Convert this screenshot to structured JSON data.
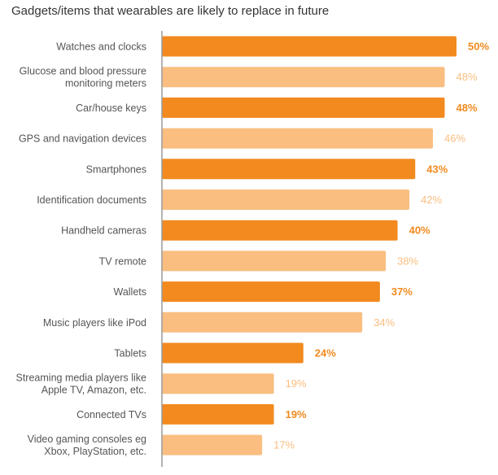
{
  "colors": {
    "dark": "#f28a1f",
    "light": "#f9be80",
    "axis": "#9a9a9a",
    "text": "#555555"
  },
  "chart_data": {
    "type": "bar",
    "orientation": "horizontal",
    "title": "Gadgets/items that wearables are likely to replace in future",
    "xlim": [
      0,
      50
    ],
    "grid": false,
    "legend": "none",
    "categories": [
      [
        "Watches and clocks"
      ],
      [
        "Glucose and blood pressure",
        "monitoring meters"
      ],
      [
        "Car/house keys"
      ],
      [
        "GPS and navigation devices"
      ],
      [
        "Smartphones"
      ],
      [
        "Identification documents"
      ],
      [
        "Handheld cameras"
      ],
      [
        "TV remote"
      ],
      [
        "Wallets"
      ],
      [
        "Music players like iPod"
      ],
      [
        "Tablets"
      ],
      [
        "Streaming media players like",
        "Apple TV, Amazon, etc."
      ],
      [
        "Connected TVs"
      ],
      [
        "Video gaming consoles eg",
        "Xbox, PlayStation, etc."
      ]
    ],
    "values": [
      50,
      48,
      48,
      46,
      43,
      42,
      40,
      38,
      37,
      34,
      24,
      19,
      19,
      17
    ],
    "value_labels": [
      "50%",
      "48%",
      "48%",
      "46%",
      "43%",
      "42%",
      "40%",
      "38%",
      "37%",
      "34%",
      "24%",
      "19%",
      "19%",
      "17%"
    ],
    "shades": [
      "dark",
      "light",
      "dark",
      "light",
      "dark",
      "light",
      "dark",
      "light",
      "dark",
      "light",
      "dark",
      "light",
      "dark",
      "light"
    ]
  }
}
